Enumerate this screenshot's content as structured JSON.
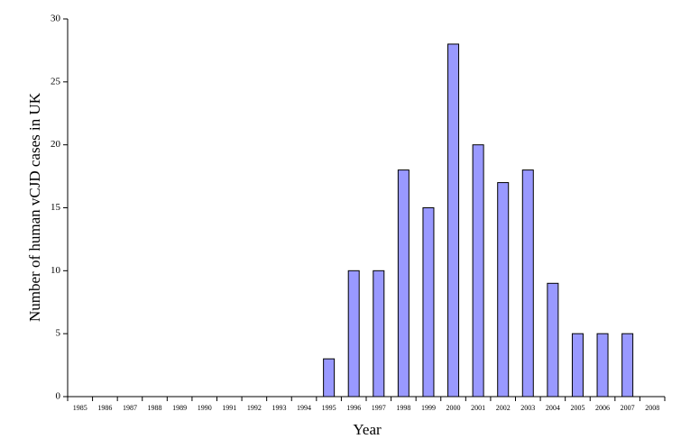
{
  "chart_data": {
    "type": "bar",
    "x_label": "Year",
    "y_label": "Number of human vCJD cases in UK",
    "categories": [
      "1985",
      "1986",
      "1987",
      "1988",
      "1989",
      "1990",
      "1991",
      "1992",
      "1993",
      "1994",
      "1995",
      "1996",
      "1997",
      "1998",
      "1999",
      "2000",
      "2001",
      "2002",
      "2003",
      "2004",
      "2005",
      "2006",
      "2007",
      "2008"
    ],
    "values": [
      0,
      0,
      0,
      0,
      0,
      0,
      0,
      0,
      0,
      0,
      3,
      10,
      10,
      18,
      15,
      28,
      20,
      17,
      18,
      9,
      5,
      5,
      5,
      0
    ],
    "color": "#9999ff",
    "ylim": [
      0,
      30
    ],
    "yticks": [
      0,
      5,
      10,
      15,
      20,
      25,
      30
    ]
  }
}
